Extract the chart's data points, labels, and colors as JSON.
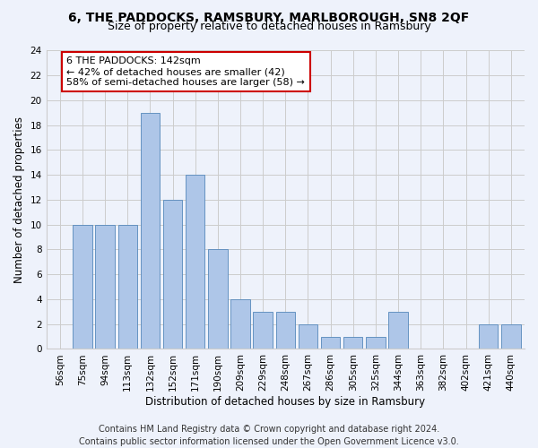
{
  "title": "6, THE PADDOCKS, RAMSBURY, MARLBOROUGH, SN8 2QF",
  "subtitle": "Size of property relative to detached houses in Ramsbury",
  "xlabel": "Distribution of detached houses by size in Ramsbury",
  "ylabel": "Number of detached properties",
  "categories": [
    "56sqm",
    "75sqm",
    "94sqm",
    "113sqm",
    "132sqm",
    "152sqm",
    "171sqm",
    "190sqm",
    "209sqm",
    "229sqm",
    "248sqm",
    "267sqm",
    "286sqm",
    "305sqm",
    "325sqm",
    "344sqm",
    "363sqm",
    "382sqm",
    "402sqm",
    "421sqm",
    "440sqm"
  ],
  "values": [
    0,
    10,
    10,
    10,
    19,
    12,
    14,
    8,
    4,
    3,
    3,
    2,
    1,
    1,
    1,
    3,
    0,
    0,
    0,
    2,
    2
  ],
  "bar_color": "#aec6e8",
  "bar_edge_color": "#5588bb",
  "ylim": [
    0,
    24
  ],
  "yticks": [
    0,
    2,
    4,
    6,
    8,
    10,
    12,
    14,
    16,
    18,
    20,
    22,
    24
  ],
  "grid_color": "#cccccc",
  "background_color": "#eef2fb",
  "annotation_line1": "6 THE PADDOCKS: 142sqm",
  "annotation_line2": "← 42% of detached houses are smaller (42)",
  "annotation_line3": "58% of semi-detached houses are larger (58) →",
  "annotation_box_color": "#ffffff",
  "annotation_box_edge": "#cc0000",
  "footer_line1": "Contains HM Land Registry data © Crown copyright and database right 2024.",
  "footer_line2": "Contains public sector information licensed under the Open Government Licence v3.0.",
  "title_fontsize": 10,
  "subtitle_fontsize": 9,
  "axis_label_fontsize": 8.5,
  "tick_fontsize": 7.5,
  "annotation_fontsize": 8,
  "footer_fontsize": 7
}
